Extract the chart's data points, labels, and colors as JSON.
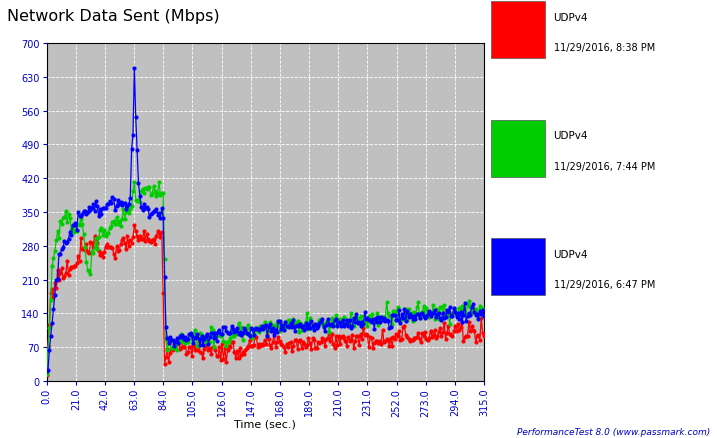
{
  "title": "Network Data Sent (Mbps)",
  "xlabel": "Time (sec.)",
  "xlim": [
    0.0,
    315.0
  ],
  "ylim": [
    0,
    700
  ],
  "yticks": [
    0,
    70,
    140,
    210,
    280,
    350,
    420,
    490,
    560,
    630,
    700
  ],
  "xticks": [
    0.0,
    21.0,
    42.0,
    63.0,
    84.0,
    105.0,
    126.0,
    147.0,
    168.0,
    189.0,
    210.0,
    231.0,
    252.0,
    273.0,
    294.0,
    315.0
  ],
  "bg_color": "#c0c0c0",
  "outer_bg": "#ffffff",
  "grid_color": "#ffffff",
  "legend": [
    {
      "label": "UDPv4",
      "date": "11/29/2016, 8:38 PM",
      "color": "#ff0000"
    },
    {
      "label": "UDPv4",
      "date": "11/29/2016, 7:44 PM",
      "color": "#00cc00"
    },
    {
      "label": "UDPv4",
      "date": "11/29/2016, 6:47 PM",
      "color": "#0000ff"
    }
  ],
  "watermark": "PerformanceTest 8.0 (www.passmark.com)",
  "line_width": 0.9,
  "marker_size": 3.0,
  "red_key_x": [
    0,
    3,
    8,
    14,
    20,
    25,
    30,
    35,
    40,
    45,
    50,
    55,
    60,
    65,
    70,
    75,
    80,
    84,
    86,
    90,
    95,
    100,
    110,
    120,
    130,
    140,
    150,
    160,
    170,
    180,
    190,
    200,
    210,
    220,
    230,
    240,
    250,
    260,
    270,
    275,
    280,
    290,
    300,
    310,
    315
  ],
  "red_key_y": [
    10,
    180,
    215,
    230,
    240,
    280,
    280,
    290,
    265,
    280,
    270,
    285,
    290,
    295,
    295,
    290,
    295,
    300,
    30,
    68,
    72,
    72,
    68,
    63,
    60,
    65,
    72,
    75,
    75,
    78,
    82,
    85,
    85,
    88,
    88,
    88,
    92,
    92,
    95,
    100,
    98,
    100,
    102,
    104,
    105
  ],
  "green_key_x": [
    0,
    4,
    8,
    14,
    20,
    25,
    30,
    35,
    40,
    45,
    50,
    55,
    60,
    63,
    65,
    70,
    75,
    80,
    84,
    86,
    95,
    105,
    115,
    125,
    135,
    145,
    155,
    165,
    175,
    185,
    195,
    205,
    215,
    225,
    235,
    245,
    255,
    265,
    275,
    285,
    295,
    305,
    315
  ],
  "green_key_y": [
    10,
    230,
    310,
    350,
    310,
    340,
    225,
    275,
    305,
    315,
    325,
    340,
    355,
    420,
    375,
    390,
    395,
    395,
    390,
    73,
    80,
    83,
    87,
    92,
    98,
    103,
    108,
    112,
    115,
    118,
    120,
    122,
    125,
    128,
    130,
    133,
    135,
    138,
    140,
    141,
    143,
    145,
    148
  ],
  "blue_key_x": [
    0,
    3,
    6,
    10,
    15,
    20,
    25,
    30,
    35,
    40,
    45,
    50,
    55,
    60,
    63,
    64,
    66,
    68,
    70,
    75,
    80,
    84,
    86,
    95,
    105,
    115,
    125,
    135,
    145,
    155,
    165,
    175,
    185,
    195,
    205,
    215,
    225,
    235,
    245,
    255,
    265,
    275,
    285,
    295,
    305,
    315
  ],
  "blue_key_y": [
    10,
    90,
    185,
    265,
    300,
    325,
    345,
    355,
    360,
    360,
    362,
    365,
    362,
    365,
    670,
    580,
    420,
    358,
    355,
    350,
    348,
    345,
    82,
    88,
    90,
    92,
    95,
    98,
    102,
    106,
    108,
    112,
    115,
    118,
    120,
    123,
    126,
    128,
    130,
    132,
    133,
    135,
    136,
    138,
    140,
    140
  ]
}
